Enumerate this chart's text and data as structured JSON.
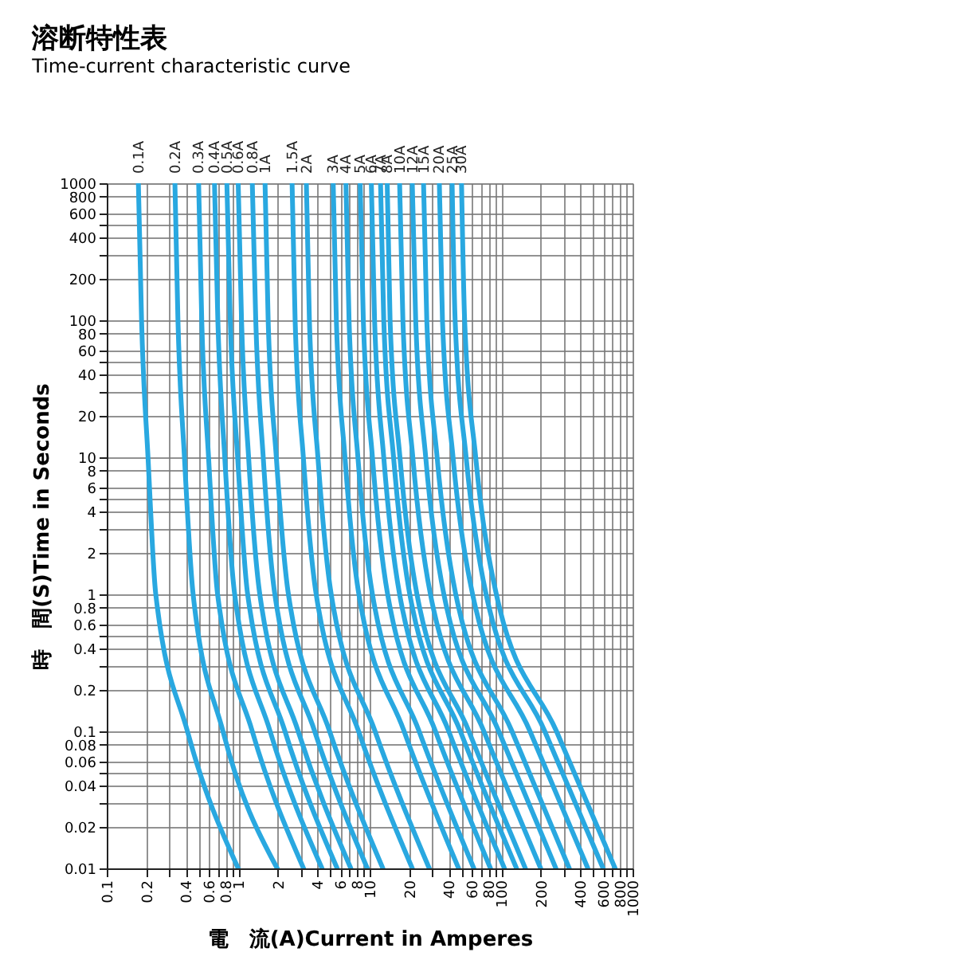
{
  "chart_data": {
    "type": "line",
    "title": "溶断特性表",
    "subtitle": "Time-current characteristic curve",
    "xlabel": "電　流(A)Current in Amperes",
    "ylabel": "時　間(S)Time in Seconds",
    "log": "xy",
    "grid": true,
    "legend": false,
    "marker": "none",
    "line_style": "solid",
    "xlim": [
      0.1,
      1000
    ],
    "ylim": [
      0.01,
      1000
    ],
    "xticks": [
      0.1,
      0.2,
      {
        "value": 0.3,
        "label": null
      },
      0.4,
      {
        "value": 0.5,
        "label": null
      },
      0.6,
      {
        "value": 0.7,
        "label": null
      },
      0.8,
      {
        "value": 0.9,
        "label": null
      },
      1,
      2,
      {
        "value": 3,
        "label": null
      },
      4,
      {
        "value": 5,
        "label": null
      },
      6,
      {
        "value": 7,
        "label": null
      },
      8,
      {
        "value": 9,
        "label": null
      },
      10,
      20,
      {
        "value": 30,
        "label": null
      },
      40,
      {
        "value": 50,
        "label": null
      },
      60,
      {
        "value": 70,
        "label": null
      },
      80,
      {
        "value": 90,
        "label": null
      },
      100,
      200,
      {
        "value": 300,
        "label": null
      },
      400,
      {
        "value": 500,
        "label": null
      },
      600,
      {
        "value": 700,
        "label": null
      },
      800,
      {
        "value": 900,
        "label": null
      },
      1000
    ],
    "yticks": [
      0.01,
      0.02,
      {
        "value": 0.03,
        "label": null
      },
      0.04,
      {
        "value": 0.05,
        "label": null
      },
      0.06,
      0.08,
      0.1,
      0.2,
      {
        "value": 0.3,
        "label": null
      },
      0.4,
      {
        "value": 0.5,
        "label": null
      },
      0.6,
      0.8,
      1,
      2,
      {
        "value": 3,
        "label": null
      },
      4,
      {
        "value": 5,
        "label": null
      },
      6,
      8,
      10,
      20,
      {
        "value": 30,
        "label": null
      },
      40,
      {
        "value": 50,
        "label": null
      },
      60,
      80,
      100,
      200,
      {
        "value": 300,
        "label": null
      },
      400,
      {
        "value": 500,
        "label": null
      },
      600,
      800,
      1000
    ],
    "series": [
      {
        "name": "0.1A",
        "color": "#29a8e0",
        "x": [
          0.174,
          0.184,
          0.206,
          0.236,
          0.411,
          1.0
        ],
        "values": [
          1000,
          100,
          10,
          1,
          0.1,
          0.01
        ]
      },
      {
        "name": "0.2A",
        "color": "#29a8e0",
        "x": [
          0.33,
          0.348,
          0.39,
          0.454,
          0.766,
          1.98
        ],
        "values": [
          1000,
          100,
          10,
          1,
          0.1,
          0.01
        ]
      },
      {
        "name": "0.3A",
        "color": "#29a8e0",
        "x": [
          0.5,
          0.528,
          0.595,
          0.697,
          1.28,
          3.14
        ],
        "values": [
          1000,
          100,
          10,
          1,
          0.1,
          0.01
        ]
      },
      {
        "name": "0.4A",
        "color": "#29a8e0",
        "x": [
          0.66,
          0.7,
          0.79,
          0.94,
          1.75,
          4.34
        ],
        "values": [
          1000,
          100,
          10,
          1,
          0.1,
          0.01
        ]
      },
      {
        "name": "0.5A",
        "color": "#29a8e0",
        "x": [
          0.82,
          0.87,
          0.99,
          1.18,
          2.27,
          5.66
        ],
        "values": [
          1000,
          100,
          10,
          1,
          0.1,
          0.01
        ]
      },
      {
        "name": "0.6A",
        "color": "#29a8e0",
        "x": [
          1.0,
          1.06,
          1.2,
          1.46,
          2.86,
          7.19
        ],
        "values": [
          1000,
          100,
          10,
          1,
          0.1,
          0.01
        ]
      },
      {
        "name": "0.8A",
        "color": "#29a8e0",
        "x": [
          1.28,
          1.36,
          1.55,
          1.9,
          3.82,
          9.6
        ],
        "values": [
          1000,
          100,
          10,
          1,
          0.1,
          0.01
        ]
      },
      {
        "name": "1A",
        "color": "#29a8e0",
        "x": [
          1.6,
          1.69,
          1.95,
          2.41,
          4.96,
          12.6
        ],
        "values": [
          1000,
          100,
          10,
          1,
          0.1,
          0.01
        ]
      },
      {
        "name": "1.5A",
        "color": "#29a8e0",
        "x": [
          2.57,
          2.71,
          3.13,
          3.92,
          8.24,
          21.1
        ],
        "values": [
          1000,
          100,
          10,
          1,
          0.1,
          0.01
        ]
      },
      {
        "name": "2A",
        "color": "#29a8e0",
        "x": [
          3.3,
          3.48,
          4.04,
          5.1,
          11,
          28.4
        ],
        "values": [
          1000,
          100,
          10,
          1,
          0.1,
          0.01
        ]
      },
      {
        "name": "3A",
        "color": "#29a8e0",
        "x": [
          5.28,
          5.58,
          6.49,
          8.28,
          18.3,
          47.5
        ],
        "values": [
          1000,
          100,
          10,
          1,
          0.1,
          0.01
        ]
      },
      {
        "name": "4A",
        "color": "#29a8e0",
        "x": [
          6.6,
          6.97,
          8.14,
          10.5,
          23.8,
          62
        ],
        "values": [
          1000,
          100,
          10,
          1,
          0.1,
          0.01
        ]
      },
      {
        "name": "5A",
        "color": "#29a8e0",
        "x": [
          8.47,
          8.95,
          10.5,
          13.7,
          31.7,
          83
        ],
        "values": [
          1000,
          100,
          10,
          1,
          0.1,
          0.01
        ]
      },
      {
        "name": "6A",
        "color": "#29a8e0",
        "x": [
          10.3,
          10.9,
          12.8,
          16.9,
          40,
          106
        ],
        "values": [
          1000,
          100,
          10,
          1,
          0.1,
          0.01
        ]
      },
      {
        "name": "7A",
        "color": "#29a8e0",
        "x": [
          12.1,
          12.8,
          15.2,
          20.2,
          49,
          131
        ],
        "values": [
          1000,
          100,
          10,
          1,
          0.1,
          0.01
        ]
      },
      {
        "name": "8A",
        "color": "#29a8e0",
        "x": [
          13.6,
          14.3,
          17,
          22.9,
          56.9,
          153
        ],
        "values": [
          1000,
          100,
          10,
          1,
          0.1,
          0.01
        ]
      },
      {
        "name": "10A",
        "color": "#29a8e0",
        "x": [
          16.9,
          17.9,
          21.3,
          29,
          74,
          200
        ],
        "values": [
          1000,
          100,
          10,
          1,
          0.1,
          0.01
        ]
      },
      {
        "name": "12A",
        "color": "#29a8e0",
        "x": [
          21.1,
          22.4,
          26.7,
          36.7,
          96,
          261
        ],
        "values": [
          1000,
          100,
          10,
          1,
          0.1,
          0.01
        ]
      },
      {
        "name": "15A",
        "color": "#29a8e0",
        "x": [
          25.7,
          27.2,
          32.6,
          45.2,
          121,
          330
        ],
        "values": [
          1000,
          100,
          10,
          1,
          0.1,
          0.01
        ]
      },
      {
        "name": "20A",
        "color": "#29a8e0",
        "x": [
          33.9,
          35.8,
          43.1,
          60.7,
          166,
          457
        ],
        "values": [
          1000,
          100,
          10,
          1,
          0.1,
          0.01
        ]
      },
      {
        "name": "25A",
        "color": "#29a8e0",
        "x": [
          42.4,
          44.7,
          54.2,
          76.9,
          215,
          597
        ],
        "values": [
          1000,
          100,
          10,
          1,
          0.1,
          0.01
        ]
      },
      {
        "name": "30A",
        "color": "#29a8e0",
        "x": [
          50,
          52.8,
          64.1,
          92,
          264,
          737
        ],
        "values": [
          1000,
          100,
          10,
          1,
          0.1,
          0.01
        ]
      }
    ]
  }
}
